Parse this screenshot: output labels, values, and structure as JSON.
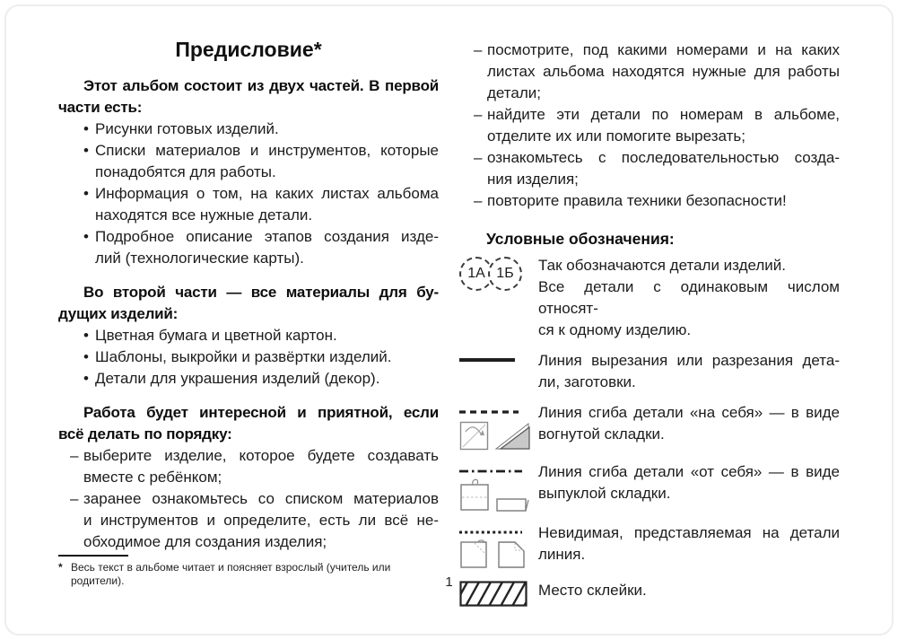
{
  "page": {
    "number": "1",
    "background": "#ffffff",
    "ink": "#1c1c1c"
  },
  "title": {
    "text": "Предисловие",
    "footnote_marker": "*"
  },
  "markers": {
    "bullet": "•",
    "dash": "–"
  },
  "left": {
    "intro": [
      "Этот альбом состоит из двух частей. В первой",
      "части есть:"
    ],
    "part1_bullets": [
      [
        "Рисунки готовых изделий."
      ],
      [
        "Списки материалов и инструментов, которые",
        "понадобятся для работы."
      ],
      [
        "Информация о том, на каких листах альбома",
        "находятся все нужные детали."
      ],
      [
        "Подробное описание этапов создания изде-",
        "лий (технологические карты)."
      ]
    ],
    "part2_heading": [
      "Во второй части — все материалы для бу-",
      "дущих изделий:"
    ],
    "part2_bullets": [
      [
        "Цветная бумага и цветной картон."
      ],
      [
        "Шаблоны, выкройки и развёртки изделий."
      ],
      [
        "Детали для украшения изделий (декор)."
      ]
    ],
    "order_heading": [
      "Работа будет интересной и приятной, если",
      "всё делать по порядку:"
    ],
    "order_steps": [
      [
        "выберите изделие, которое будете создавать",
        "вместе с ребёнком;"
      ],
      [
        "заранее ознакомьтесь со списком материалов",
        "и инструментов и определите, есть ли всё не-",
        "обходимое для создания изделия;"
      ]
    ],
    "footnote": {
      "marker": "*",
      "text": "Весь текст в альбоме читает и поясняет взрослый (учитель или родители)."
    }
  },
  "right": {
    "steps": [
      [
        "посмотрите, под какими номерами и на каких",
        "листах альбома находятся нужные для работы",
        "детали;"
      ],
      [
        "найдите эти детали по номерам в альбоме,",
        "отделите их или помогите вырезать;"
      ],
      [
        "ознакомьтесь с последовательностью созда-",
        "ния изделия;"
      ],
      [
        "повторите правила техники безопасности!"
      ]
    ],
    "legend": {
      "heading": "Условные обозначения:",
      "items": [
        {
          "symbol": "detail-number-circles-icon",
          "badges": [
            "1А",
            "1Б"
          ],
          "para1": [
            "Так обозначаются детали изделий."
          ],
          "para2": [
            "Все детали с одинаковым числом относят-",
            "ся к одному изделию."
          ]
        },
        {
          "symbol": "cut-line-icon",
          "lines": [
            "Линия вырезания или разрезания дета-",
            "ли, заготовки."
          ]
        },
        {
          "symbol": "fold-toward-line-icon",
          "lines": [
            "Линия сгиба детали «на себя» — в виде",
            "вогнутой складки."
          ]
        },
        {
          "symbol": "fold-away-line-icon",
          "lines": [
            "Линия сгиба детали «от себя» — в виде",
            "выпуклой складки."
          ]
        },
        {
          "symbol": "invisible-line-icon",
          "lines": [
            "Невидимая, представляемая на детали",
            "линия."
          ]
        },
        {
          "symbol": "glue-area-icon",
          "lines": [
            "Место склейки."
          ]
        }
      ]
    }
  }
}
